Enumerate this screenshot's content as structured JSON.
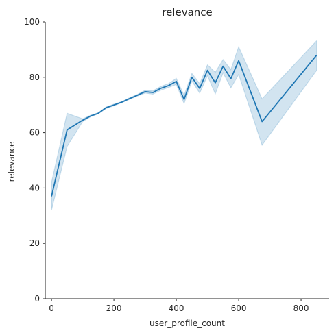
{
  "chart_data": {
    "type": "line",
    "title": "relevance",
    "xlabel": "user_profile_count",
    "ylabel": "relevance",
    "xlim": [
      -20,
      890
    ],
    "ylim": [
      0,
      100
    ],
    "xticks": [
      0,
      200,
      400,
      600,
      800
    ],
    "yticks": [
      0,
      20,
      40,
      60,
      80,
      100
    ],
    "grid": false,
    "colors": {
      "line": "#1f77b4",
      "band": "#1f77b4"
    },
    "series": [
      {
        "x": [
          0,
          50,
          100,
          125,
          150,
          175,
          200,
          225,
          250,
          275,
          300,
          325,
          350,
          375,
          400,
          425,
          450,
          475,
          500,
          525,
          550,
          575,
          600,
          675,
          850
        ],
        "y": [
          37,
          61,
          64.5,
          66,
          67,
          69,
          70,
          71,
          72.3,
          73.5,
          74.8,
          74.5,
          76,
          77,
          78.5,
          72,
          80,
          76,
          82.5,
          78,
          84,
          79.5,
          86,
          64,
          88
        ],
        "lower": [
          32,
          55,
          64,
          65.7,
          66.8,
          68.7,
          69.7,
          70.8,
          72,
          73.2,
          74.3,
          73.9,
          75.3,
          76.3,
          77.4,
          70.5,
          78.6,
          74.3,
          80.5,
          74,
          81.6,
          76.2,
          81,
          55.5,
          82.5
        ],
        "upper": [
          42,
          67,
          65,
          66.3,
          67.2,
          69.3,
          70.3,
          71.2,
          72.6,
          73.8,
          75.3,
          75.1,
          76.7,
          77.7,
          79.6,
          73.5,
          81.4,
          77.7,
          84.5,
          81.8,
          86.4,
          82.8,
          91,
          72.2,
          93.2
        ]
      }
    ]
  }
}
